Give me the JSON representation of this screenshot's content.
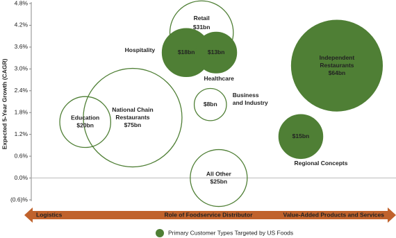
{
  "chart_data": {
    "type": "bubble",
    "y_label": "Expected 5-Year Growth (CAGR)",
    "x_label": "Role of Foodservice Distributor",
    "x_left_label": "Logistics",
    "x_right_label": "Value-Added Products and Services",
    "legend": "Primary Customer Types Targeted by US Foods",
    "color": "#4f7f35",
    "xlim": [
      0,
      100
    ],
    "ylim": [
      -0.6,
      4.8
    ],
    "yticks": [
      {
        "value": 4.8,
        "label": "4.8%"
      },
      {
        "value": 4.2,
        "label": "4.2%"
      },
      {
        "value": 3.6,
        "label": "3.6%"
      },
      {
        "value": 3.0,
        "label": "3.0%"
      },
      {
        "value": 2.4,
        "label": "2.4%"
      },
      {
        "value": 1.8,
        "label": "1.8%"
      },
      {
        "value": 1.2,
        "label": "1.2%"
      },
      {
        "value": 0.6,
        "label": "0.6%"
      },
      {
        "value": 0.0,
        "label": "0.0%"
      },
      {
        "value": -0.6,
        "label": "(0.6)%"
      }
    ],
    "points": [
      {
        "name": [
          "Retail"
        ],
        "x": 46.7,
        "y": 4.0,
        "size": 31,
        "size_label": "$31bn",
        "targeted": false
      },
      {
        "name": [
          "Hospitality"
        ],
        "x": 42.5,
        "y": 3.45,
        "size": 18,
        "size_label": "$18bn",
        "targeted": true
      },
      {
        "name": [
          "Healthcare"
        ],
        "x": 50.7,
        "y": 3.45,
        "size": 13,
        "size_label": "$13bn",
        "targeted": true
      },
      {
        "name": [
          "Education"
        ],
        "x": 14.8,
        "y": 1.54,
        "size": 20,
        "size_label": "$20bn",
        "targeted": false
      },
      {
        "name": [
          "National Chain",
          "Restaurants"
        ],
        "x": 27.8,
        "y": 1.66,
        "size": 75,
        "size_label": "$75bn",
        "targeted": false
      },
      {
        "name": [
          "Business",
          "and Industry"
        ],
        "x": 49.1,
        "y": 2.02,
        "size": 8,
        "size_label": "$8bn",
        "targeted": false
      },
      {
        "name": [
          "All Other"
        ],
        "x": 51.4,
        "y": 0.0,
        "size": 25,
        "size_label": "$25bn",
        "targeted": false
      },
      {
        "name": [
          "Independent",
          "Restaurants"
        ],
        "x": 83.8,
        "y": 3.09,
        "size": 64,
        "size_label": "$64bn",
        "targeted": true
      },
      {
        "name": [
          "Regional Concepts"
        ],
        "x": 73.9,
        "y": 1.14,
        "size": 15,
        "size_label": "$15bn",
        "targeted": true
      }
    ]
  }
}
